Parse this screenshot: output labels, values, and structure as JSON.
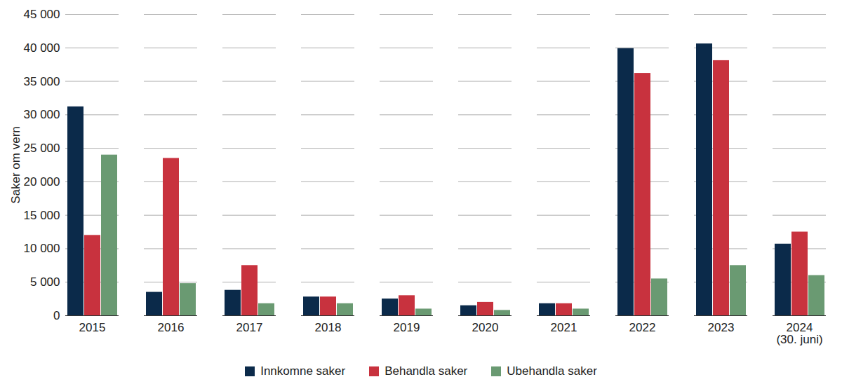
{
  "chart_data": {
    "type": "bar",
    "y_label": "Saker om vern",
    "categories": [
      "2015",
      "2016",
      "2017",
      "2018",
      "2019",
      "2020",
      "2021",
      "2022",
      "2023",
      "2024\n(30. juni)"
    ],
    "series": [
      {
        "name": "Innkomne saker",
        "color": "#0b2a4a",
        "values": [
          31200,
          3500,
          3800,
          2800,
          2500,
          1500,
          1800,
          39900,
          40600,
          10700
        ]
      },
      {
        "name": "Behandla saker",
        "color": "#c8323e",
        "values": [
          12000,
          23500,
          7500,
          2800,
          3000,
          2000,
          1800,
          36200,
          38100,
          12500
        ]
      },
      {
        "name": "Ubehandla saker",
        "color": "#6a9a72",
        "values": [
          24000,
          4800,
          1800,
          1800,
          1000,
          800,
          1000,
          5500,
          7500,
          6000
        ]
      }
    ],
    "ylim": [
      0,
      45000
    ],
    "yticks": [
      0,
      {
        "value": 5000,
        "label": "5 000"
      },
      {
        "value": 10000,
        "label": "10 000"
      },
      {
        "value": 15000,
        "label": "15 000"
      },
      {
        "value": 20000,
        "label": "20 000"
      },
      {
        "value": 25000,
        "label": "25 000"
      },
      {
        "value": 30000,
        "label": "30 000"
      },
      {
        "value": 35000,
        "label": "35 000"
      },
      {
        "value": 40000,
        "label": "40 000"
      },
      {
        "value": 45000,
        "label": "45 000"
      }
    ],
    "grid": true,
    "legend": "bottom"
  }
}
